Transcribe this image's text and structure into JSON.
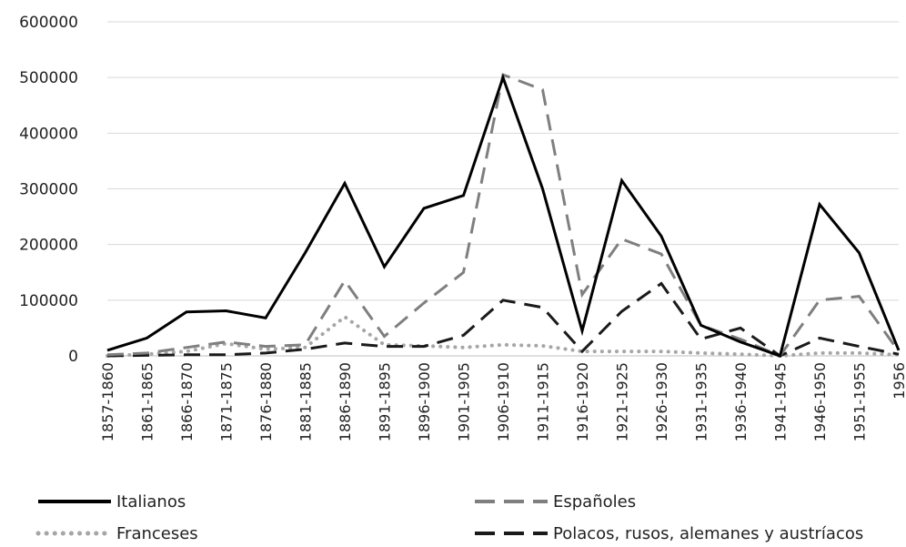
{
  "chart_data": {
    "type": "line",
    "categories": [
      "1857-1860",
      "1861-1865",
      "1866-1870",
      "1871-1875",
      "1876-1880",
      "1881-1885",
      "1886-1890",
      "1891-1895",
      "1896-1900",
      "1901-1905",
      "1906-1910",
      "1911-1915",
      "1916-1920",
      "1921-1925",
      "1926-1930",
      "1931-1935",
      "1936-1940",
      "1941-1945",
      "1946-1950",
      "1951-1955",
      "1956"
    ],
    "ylim": [
      0,
      600000
    ],
    "yticks": [
      0,
      100000,
      200000,
      300000,
      400000,
      500000,
      600000
    ],
    "ytick_labels": [
      "0",
      "100000",
      "200000",
      "300000",
      "400000",
      "500000",
      "600000"
    ],
    "grid": true,
    "legend_position": "bottom",
    "series": [
      {
        "name": "Italianos",
        "style": "solid",
        "color": "#000000",
        "values": [
          10000,
          32000,
          79000,
          81000,
          68000,
          185000,
          310000,
          160000,
          265000,
          288000,
          500000,
          300000,
          45000,
          315000,
          215000,
          55000,
          25000,
          0,
          272000,
          185000,
          10000
        ]
      },
      {
        "name": "Españoles",
        "style": "dashed",
        "color": "#7f7f7f",
        "values": [
          2000,
          5000,
          15000,
          25000,
          17000,
          20000,
          135000,
          35000,
          95000,
          150000,
          505000,
          478000,
          110000,
          210000,
          183000,
          55000,
          30000,
          0,
          100000,
          107000,
          8000
        ]
      },
      {
        "name": "Franceses",
        "style": "dotted",
        "color": "#a6a6a6",
        "values": [
          0,
          3000,
          8000,
          22000,
          12000,
          15000,
          70000,
          20000,
          18000,
          15000,
          20000,
          18000,
          8000,
          8000,
          8000,
          5000,
          3000,
          0,
          5000,
          5000,
          2000
        ]
      },
      {
        "name": "Polacos, rusos, alemanes y austríacos",
        "style": "dashed",
        "color": "#1a1a1a",
        "values": [
          0,
          1000,
          2000,
          2000,
          5000,
          12000,
          23000,
          17000,
          17000,
          37000,
          100000,
          87000,
          8000,
          80000,
          130000,
          30000,
          50000,
          0,
          32000,
          17000,
          3000
        ]
      }
    ]
  }
}
